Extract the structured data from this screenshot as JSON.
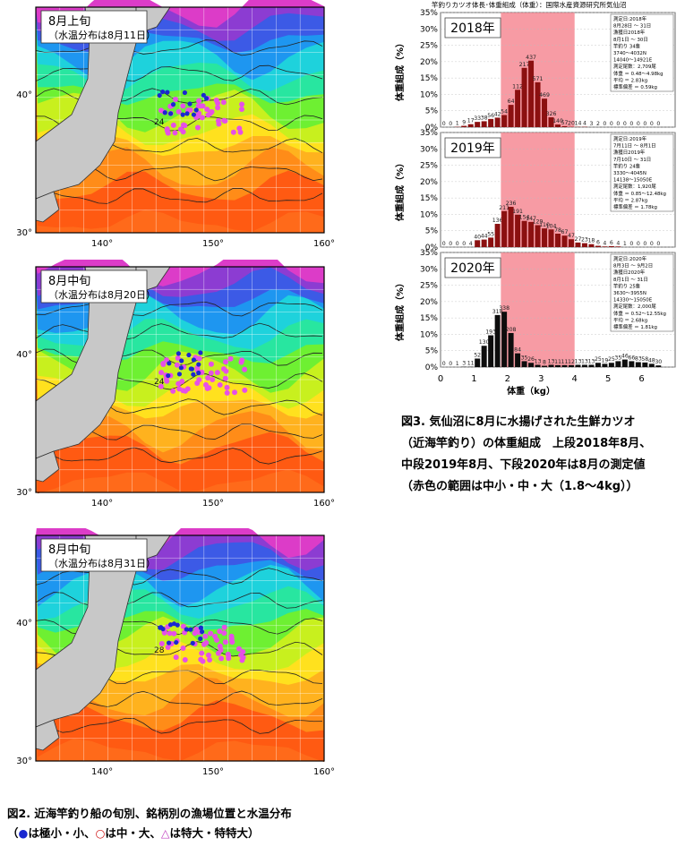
{
  "maps": [
    {
      "period": "8月上旬",
      "sst_date": "（水温分布は8月11日）",
      "lat_ticks": [
        "40°",
        "30°"
      ],
      "lon_ticks": [
        "140°",
        "150°",
        "160°"
      ],
      "isotherm_labels": [
        "24"
      ]
    },
    {
      "period": "8月中旬",
      "sst_date": "（水温分布は8月20日）",
      "lat_ticks": [
        "40°",
        "30°"
      ],
      "lon_ticks": [
        "140°",
        "150°",
        "160°"
      ],
      "isotherm_labels": [
        "24"
      ]
    },
    {
      "period": "8月中旬",
      "sst_date": "（水温分布は8月31日）",
      "lat_ticks": [
        "40°",
        "30°"
      ],
      "lon_ticks": [
        "140°",
        "150°",
        "160°"
      ],
      "isotherm_labels": [
        "28"
      ]
    }
  ],
  "fig2_caption": {
    "line1": "図2.  近海竿釣り船の旬別、銘柄別の漁場位置と水温分布",
    "line2_open": "（",
    "dot": "●",
    "t1": "は極小・小、",
    "circle": "○",
    "t2": "は中・大、",
    "tri": "△",
    "t3": "は特大・特特大）"
  },
  "fig3_caption": {
    "line1": "図3.  気仙沼に8月に水揚げされた生鮮カツオ",
    "line2": "（近海竿釣り）の体重組成　上段2018年8月、",
    "line3": "中段2019年8月、下段2020年は8月の測定値",
    "line4": "（赤色の範囲は中小・中・大（1.8〜4kg））"
  },
  "chart_data": {
    "type": "bar",
    "title": "竿釣りカツオ体長･体重組成（体重）：国際水産資源研究所気仙沼",
    "xlabel": "体重（kg）",
    "ylabel": "体重組成（%）",
    "xlim": [
      0,
      7
    ],
    "x_ticks": [
      "0",
      "1",
      "2",
      "3",
      "4",
      "5",
      "6"
    ],
    "y_ticks": [
      "0%",
      "5%",
      "10%",
      "15%",
      "20%",
      "25%",
      "30%",
      "35%"
    ],
    "ylim": [
      0,
      35
    ],
    "highlight_range": [
      1.8,
      4.0
    ],
    "highlight_color": "#f47a86",
    "bin_width": 0.2,
    "panels": [
      {
        "year": "2018年",
        "bar_color": "#8b1010",
        "values": [
          0,
          0,
          0.1,
          0.4,
          0.9,
          1.6,
          1.8,
          2.5,
          2.9,
          3.7,
          6.8,
          11.4,
          18.1,
          20.3,
          13.7,
          8.7,
          3.0,
          0.8,
          0.3,
          0.1,
          0.1,
          0.1,
          0,
          0,
          0,
          0,
          0,
          0,
          0,
          0,
          0,
          0,
          0
        ],
        "labels": [
          "0",
          "0",
          "1",
          "9",
          "17",
          "33",
          "38",
          "56",
          "42",
          "54",
          "64",
          "112",
          "217",
          "437",
          "571",
          "469",
          "326",
          "140",
          "57",
          "20",
          "14",
          "4",
          "3",
          "2",
          "0",
          "0",
          "0",
          "0",
          "0",
          "0",
          "0",
          "0",
          "0"
        ],
        "info": [
          "測定日:2018年",
          "8月28日 ～ 31日",
          "漁獲日2018年",
          "8月1日 ～ 30日",
          "竿釣り  34隻",
          "3740～4032N",
          "14040～14921E",
          "測定尾数：2,709尾",
          "体重 ＝ 0.48～4.98kg",
          "平均 ＝ 2.83kg",
          "標準偏差 ＝ 0.59kg"
        ]
      },
      {
        "year": "2019年",
        "bar_color": "#8b1010",
        "values": [
          0,
          0,
          0,
          0,
          0,
          2.1,
          2.3,
          2.9,
          7.1,
          11.0,
          12.3,
          9.9,
          8.0,
          7.7,
          6.7,
          5.7,
          5.4,
          4.1,
          3.5,
          2.4,
          1.4,
          1.2,
          0.9,
          0.4,
          0.2,
          0.3,
          0.2,
          0,
          0,
          0,
          0,
          0,
          0
        ],
        "labels": [
          "0",
          "0",
          "0",
          "0",
          "4",
          "40",
          "44",
          "55",
          "136",
          "211",
          "236",
          "191",
          "154",
          "147",
          "129",
          "110",
          "104",
          "78",
          "67",
          "47",
          "27",
          "23",
          "18",
          "6",
          "4",
          "6",
          "4",
          "1",
          "0",
          "0",
          "0",
          "0",
          "0"
        ],
        "info": [
          "測定日:2019年",
          "7月11日 ～ 8月1日",
          "漁獲日2019年",
          "7月10日 ～ 31日",
          "竿釣り  24隻",
          "3330～4045N",
          "14138～15050E",
          "測定尾数：1,920尾",
          "体重 ＝ 0.85～12.48kg",
          "平均 ＝ 2.87kg",
          "標準偏差 ＝ 1.78kg"
        ]
      },
      {
        "year": "2020年",
        "bar_color": "#0d0d0d",
        "values": [
          0,
          0,
          0,
          0.1,
          0.1,
          2.6,
          6.5,
          9.7,
          15.9,
          16.9,
          10.4,
          4.2,
          1.8,
          1.3,
          0.7,
          0.4,
          0.7,
          0.6,
          0.6,
          0.6,
          0.7,
          0.7,
          0.7,
          1.3,
          1.0,
          1.3,
          1.8,
          2.3,
          1.8,
          1.5,
          1.4,
          1.0,
          0.5
        ],
        "labels": [
          "0",
          "0",
          "1",
          "3",
          "11",
          "52",
          "130",
          "193",
          "318",
          "338",
          "208",
          "84",
          "35",
          "26",
          "13",
          "8",
          "13",
          "11",
          "11",
          "12",
          "13",
          "13",
          "13",
          "25",
          "19",
          "25",
          "35",
          "46",
          "66",
          "83",
          "58",
          "48",
          "30"
        ],
        "info": [
          "測定日:2020年",
          "8月3日 ～ 9月2日",
          "漁獲日2020年",
          "8月1日 ～ 31日",
          "竿釣り  25隻",
          "3630～3955N",
          "14330～15050E",
          "測定尾数：2,000尾",
          "体重 ＝ 0.52～12.55kg",
          "平均 ＝ 2.68kg",
          "標準偏差 ＝ 1.81kg"
        ]
      }
    ]
  }
}
